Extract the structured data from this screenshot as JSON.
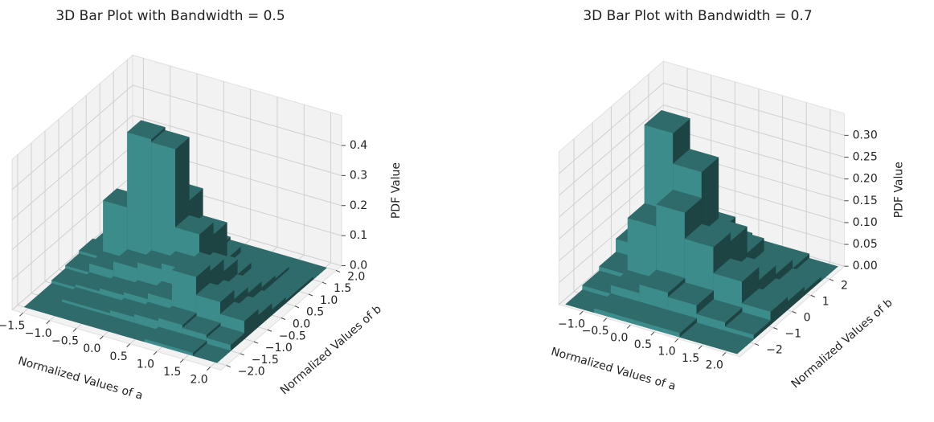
{
  "chart_data": [
    {
      "type": "bar3d",
      "title": "3D Bar Plot with Bandwidth = 0.5",
      "xlabel": "Normalized Values of a",
      "ylabel": "Normalized Values of b",
      "zlabel": "PDF Value",
      "color": "#357a7a",
      "x": [
        -1.35,
        -0.9,
        -0.45,
        0,
        0.45,
        0.9,
        1.35,
        1.8
      ],
      "y": [
        -1.75,
        -1.25,
        -0.75,
        -0.25,
        0.25,
        0.75,
        1.25,
        1.75
      ],
      "values": [
        [
          0,
          0,
          0.01,
          0.02,
          0.03,
          0.02,
          0.01,
          0
        ],
        [
          0,
          0.01,
          0.02,
          0.05,
          0.22,
          0.15,
          0.03,
          0
        ],
        [
          0,
          0.01,
          0.03,
          0.08,
          0.47,
          0.28,
          0.05,
          0
        ],
        [
          0,
          0.02,
          0.04,
          0.1,
          0.46,
          0.25,
          0.04,
          0.01
        ],
        [
          0,
          0.03,
          0.06,
          0.12,
          0.2,
          0.16,
          0.04,
          0
        ],
        [
          0.01,
          0.04,
          0.16,
          0.14,
          0.1,
          0.05,
          0.02,
          0
        ],
        [
          0.01,
          0.03,
          0.1,
          0.07,
          0.05,
          0.03,
          0.02,
          0
        ],
        [
          0,
          0.02,
          0.06,
          0.04,
          0.02,
          0.01,
          0.01,
          0
        ]
      ],
      "xlim": [
        -1.7,
        2.2
      ],
      "ylim": [
        -2.2,
        2.2
      ],
      "zlim": [
        0,
        0.5
      ],
      "xticks": [
        {
          "value": -1.5,
          "label": "−1.5"
        },
        {
          "value": -1,
          "label": "−1.0"
        },
        {
          "value": -0.5,
          "label": "−0.5"
        },
        {
          "value": 0,
          "label": "0.0"
        },
        0.5,
        {
          "value": 1,
          "label": "1.0"
        },
        1.5,
        {
          "value": 2,
          "label": "2.0"
        }
      ],
      "yticks": [
        {
          "value": -2,
          "label": "−2.0"
        },
        {
          "value": -1.5,
          "label": "−1.5"
        },
        {
          "value": -1,
          "label": "−1.0"
        },
        {
          "value": -0.5,
          "label": "−0.5"
        },
        {
          "value": 0,
          "label": "0.0"
        },
        0.5,
        {
          "value": 1,
          "label": "1.0"
        },
        1.5,
        {
          "value": 2,
          "label": "2.0"
        }
      ],
      "zticks": [
        {
          "value": 0,
          "label": "0.0"
        },
        0.1,
        0.2,
        0.3,
        0.4
      ],
      "grid": true
    },
    {
      "type": "bar3d",
      "title": "3D Bar Plot with Bandwidth = 0.7",
      "xlabel": "Normalized Values of a",
      "ylabel": "Normalized Values of b",
      "zlabel": "PDF Value",
      "color": "#357a7a",
      "x": [
        -1.1,
        -0.5,
        0.1,
        0.7,
        1.3,
        1.9
      ],
      "y": [
        -2.25,
        -1.35,
        -0.45,
        0.45,
        1.35,
        2.25
      ],
      "values": [
        [
          0,
          0.01,
          0.02,
          0.05,
          0.03,
          0.01
        ],
        [
          0.01,
          0.03,
          0.15,
          0.33,
          0.1,
          0.02
        ],
        [
          0.01,
          0.05,
          0.2,
          0.26,
          0.09,
          0.02
        ],
        [
          0.01,
          0.04,
          0.14,
          0.12,
          0.06,
          0.01
        ],
        [
          0,
          0.02,
          0.08,
          0.05,
          0.03,
          0.01
        ],
        [
          0,
          0.01,
          0.03,
          0.02,
          0.01,
          0
        ]
      ],
      "xlim": [
        -1.5,
        2.3
      ],
      "ylim": [
        -2.8,
        2.8
      ],
      "zlim": [
        0,
        0.35
      ],
      "xticks": [
        {
          "value": -1,
          "label": "−1.0"
        },
        {
          "value": -0.5,
          "label": "−0.5"
        },
        {
          "value": 0,
          "label": "0.0"
        },
        0.5,
        {
          "value": 1,
          "label": "1.0"
        },
        1.5,
        {
          "value": 2,
          "label": "2.0"
        }
      ],
      "yticks": [
        {
          "value": -2,
          "label": "−2"
        },
        {
          "value": -1,
          "label": "−1"
        },
        0,
        1,
        2
      ],
      "zticks": [
        {
          "value": 0,
          "label": "0.00"
        },
        0.05,
        {
          "value": 0.1,
          "label": "0.10"
        },
        0.15,
        {
          "value": 0.2,
          "label": "0.20"
        },
        0.25,
        {
          "value": 0.3,
          "label": "0.30"
        }
      ],
      "grid": true
    }
  ]
}
